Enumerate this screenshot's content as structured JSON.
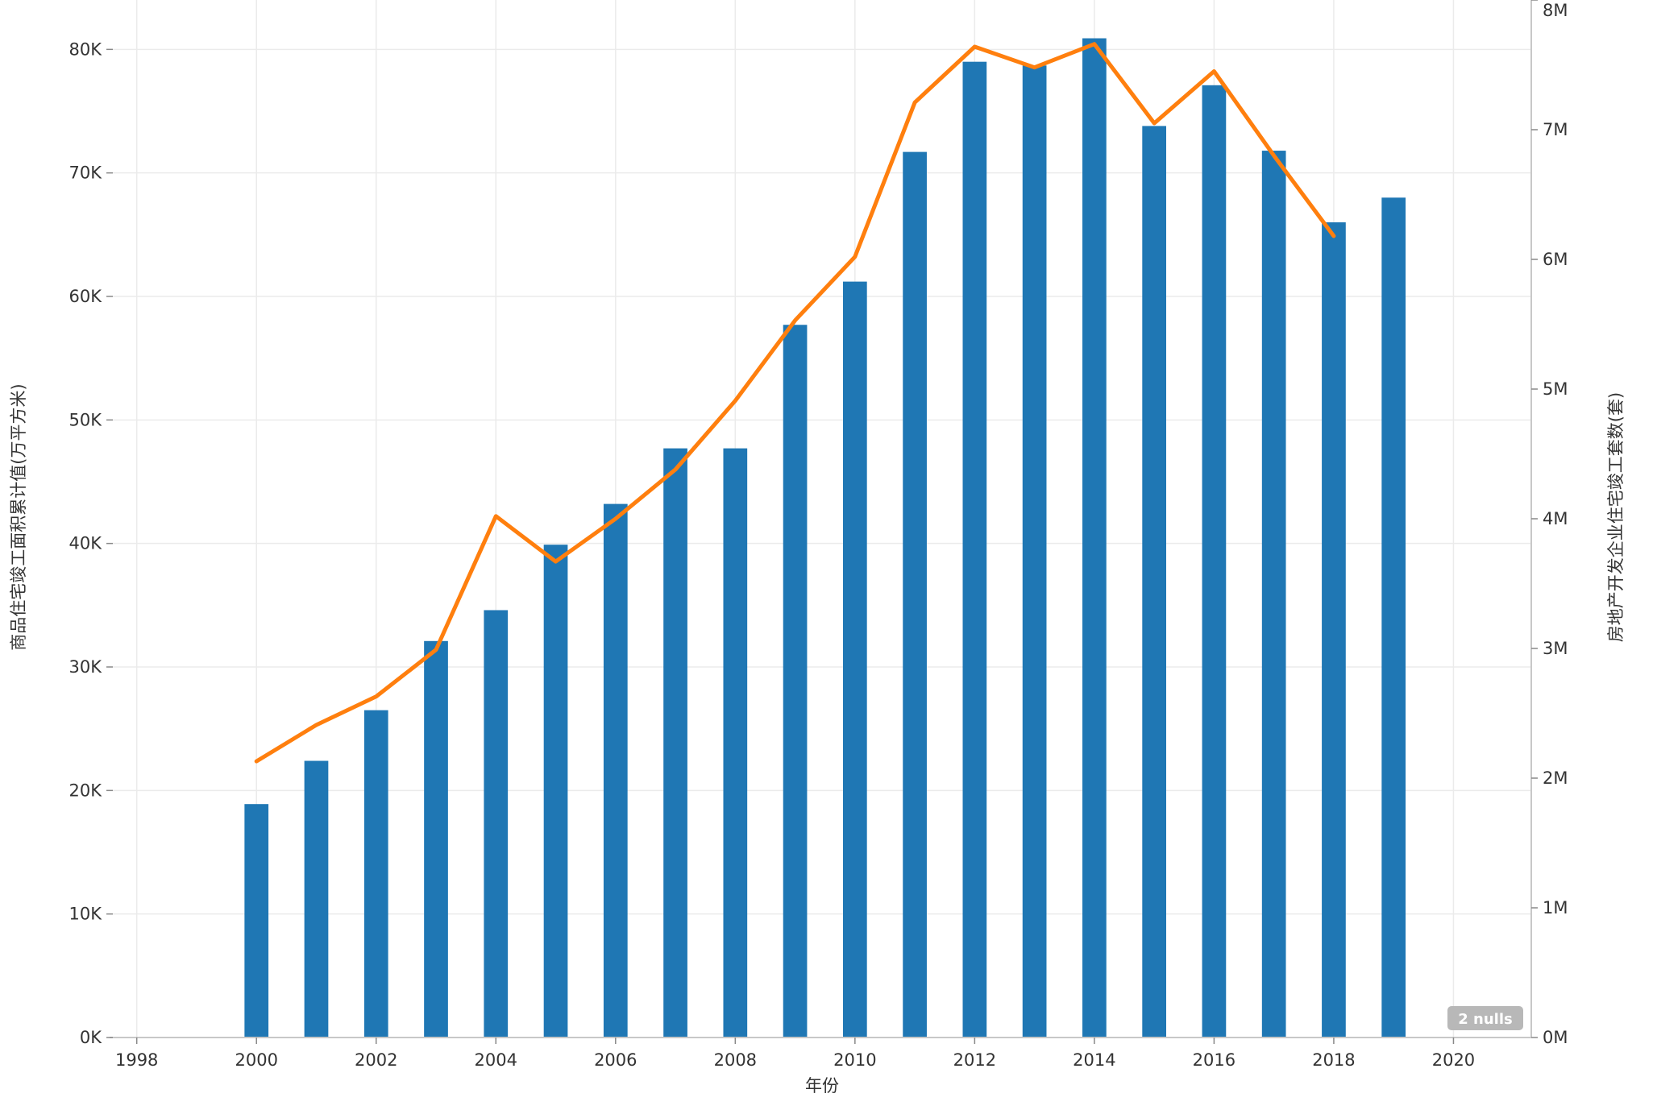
{
  "chart_data": {
    "type": "bar+line",
    "xlabel": "年份",
    "ylabel_left": "商品住宅竣工面积累计值(万平方米)",
    "ylabel_right": "房地产开发企业住宅竣工套数(套)",
    "xlim": [
      1997.6,
      2021.3
    ],
    "x_ticks": [
      1998,
      2000,
      2002,
      2004,
      2006,
      2008,
      2010,
      2012,
      2014,
      2016,
      2018,
      2020
    ],
    "ylim_left": [
      0,
      84000
    ],
    "ylim_right": [
      0,
      8000000
    ],
    "left_ticks": [
      0,
      10000,
      20000,
      30000,
      40000,
      50000,
      60000,
      70000,
      80000
    ],
    "left_tick_labels": [
      "0K",
      "10K",
      "20K",
      "30K",
      "40K",
      "50K",
      "60K",
      "70K",
      "80K"
    ],
    "right_ticks": [
      0,
      1000000,
      2000000,
      3000000,
      4000000,
      5000000,
      6000000,
      7000000,
      8000000
    ],
    "right_tick_labels": [
      "0M",
      "1M",
      "2M",
      "3M",
      "4M",
      "5M",
      "6M",
      "7M",
      "8M"
    ],
    "grid": true,
    "series": [
      {
        "type": "bar",
        "axis": "left",
        "color": "#1f77b4",
        "x": [
          2000,
          2001,
          2002,
          2003,
          2004,
          2005,
          2006,
          2007,
          2008,
          2009,
          2010,
          2011,
          2012,
          2013,
          2014,
          2015,
          2016,
          2017,
          2018,
          2019
        ],
        "values": [
          18900,
          22400,
          26500,
          32100,
          34600,
          39900,
          43200,
          47700,
          47700,
          57700,
          61200,
          71700,
          79000,
          78700,
          80900,
          73800,
          77100,
          71800,
          66000,
          68000
        ]
      },
      {
        "type": "line",
        "axis": "right",
        "color": "#ff7f0e",
        "x": [
          2000,
          2001,
          2002,
          2003,
          2004,
          2005,
          2006,
          2007,
          2008,
          2009,
          2010,
          2011,
          2012,
          2013,
          2014,
          2015,
          2016,
          2017,
          2018
        ],
        "values": [
          2130000,
          2410000,
          2630000,
          2990000,
          4020000,
          3670000,
          4000000,
          4380000,
          4910000,
          5530000,
          6020000,
          7210000,
          7640000,
          7480000,
          7660000,
          7050000,
          7450000,
          6800000,
          6180000
        ]
      }
    ],
    "null_badge": "2 nulls"
  }
}
